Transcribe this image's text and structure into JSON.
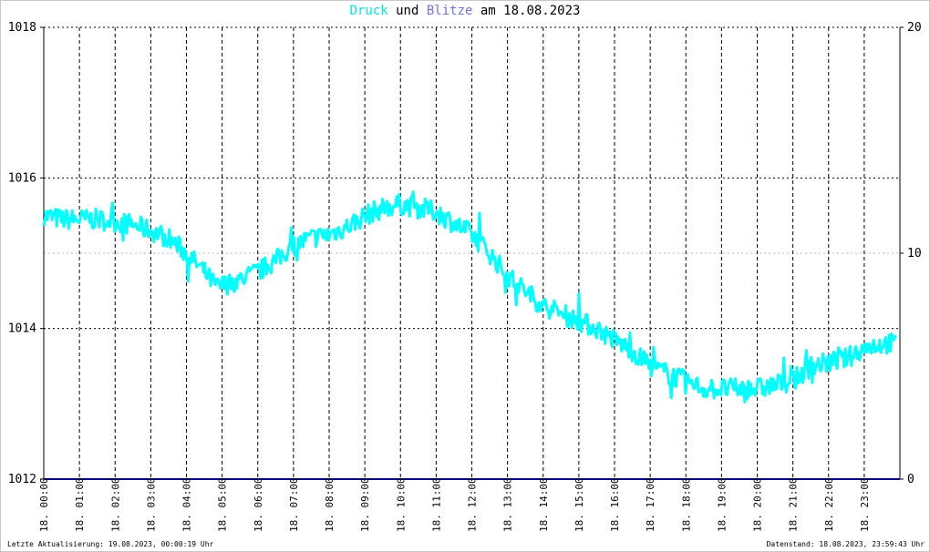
{
  "title": {
    "part1": "Druck",
    "part2": " und ",
    "part3": "Blitze",
    "part4": " am 18.08.2023"
  },
  "footer": {
    "left": "Letzte Aktualisierung: 19.08.2023, 00:00:19 Uhr",
    "right": "Datenstand: 18.08.2023, 23:59:43 Uhr"
  },
  "chart_data": {
    "type": "line",
    "title": "Druck und Blitze am 18.08.2023",
    "x_tick_labels": [
      "18. 00:00",
      "18. 01:00",
      "18. 02:00",
      "18. 03:00",
      "18. 04:00",
      "18. 05:00",
      "18. 06:00",
      "18. 07:00",
      "18. 08:00",
      "18. 09:00",
      "18. 10:00",
      "18. 11:00",
      "18. 12:00",
      "18. 13:00",
      "18. 14:00",
      "18. 15:00",
      "18. 16:00",
      "18. 17:00",
      "18. 18:00",
      "18. 19:00",
      "18. 20:00",
      "18. 21:00",
      "18. 22:00",
      "18. 23:00"
    ],
    "xlim_hours": [
      0,
      24
    ],
    "y_left": {
      "ticks": [
        1012,
        1014,
        1016,
        1018
      ],
      "lim": [
        1012,
        1018
      ]
    },
    "y_right": {
      "ticks": [
        0,
        10,
        20
      ],
      "lim": [
        0,
        20
      ]
    },
    "grid": true,
    "colors": {
      "druck": "#00ffff",
      "blitze": "#000080",
      "title_druck": "#00e5e5",
      "title_blitze": "#7070e0"
    },
    "series": [
      {
        "name": "Druck",
        "axis": "left",
        "x_hours": [
          0,
          0.5,
          1,
          1.5,
          2,
          2.5,
          3,
          3.5,
          4,
          4.5,
          4.85,
          5.2,
          5.5,
          6,
          6.5,
          7,
          7.5,
          8,
          8.5,
          9,
          9.5,
          10,
          10.5,
          11,
          11.5,
          12,
          12.5,
          13,
          13.5,
          14,
          14.5,
          15,
          15.5,
          16,
          16.5,
          17,
          17.5,
          18,
          18.5,
          19,
          19.5,
          20,
          20.5,
          21,
          21.5,
          22,
          22.5,
          23,
          23.5,
          23.9
        ],
        "values": [
          1015.5,
          1015.45,
          1015.45,
          1015.45,
          1015.42,
          1015.38,
          1015.3,
          1015.2,
          1015.0,
          1014.75,
          1014.55,
          1014.6,
          1014.65,
          1014.75,
          1014.9,
          1015.1,
          1015.2,
          1015.25,
          1015.35,
          1015.5,
          1015.6,
          1015.65,
          1015.6,
          1015.55,
          1015.4,
          1015.25,
          1015.0,
          1014.7,
          1014.5,
          1014.3,
          1014.2,
          1014.1,
          1014.0,
          1013.85,
          1013.7,
          1013.5,
          1013.4,
          1013.3,
          1013.2,
          1013.2,
          1013.2,
          1013.2,
          1013.25,
          1013.3,
          1013.5,
          1013.55,
          1013.6,
          1013.75,
          1013.8,
          1013.8
        ]
      },
      {
        "name": "Blitze",
        "axis": "right",
        "x_hours": [
          0,
          24
        ],
        "values": [
          0,
          0
        ]
      }
    ]
  }
}
